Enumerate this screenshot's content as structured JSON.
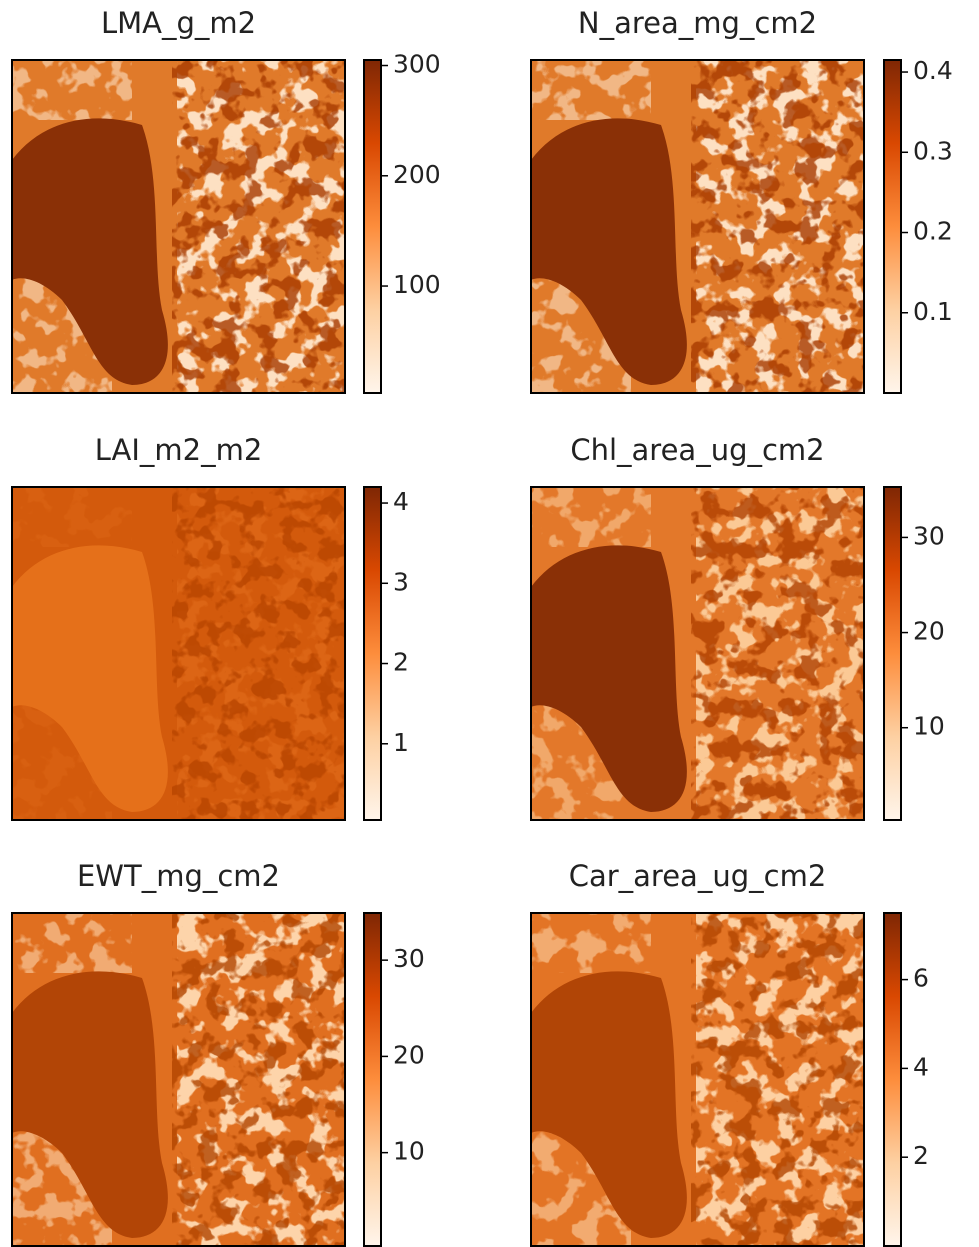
{
  "chart_data": [
    {
      "type": "heatmap",
      "title": "LMA_g_m2",
      "ylim": [
        3,
        305
      ],
      "yticks": [
        100,
        200,
        300
      ],
      "colormap": [
        "#fff5eb",
        "#fdd0a2",
        "#fd8d3c",
        "#d94801",
        "#7f2704"
      ]
    },
    {
      "type": "heatmap",
      "title": "N_area_mg_cm2",
      "ylim": [
        0,
        0.415
      ],
      "yticks": [
        0.1,
        0.2,
        0.3,
        0.4
      ],
      "colormap": [
        "#fff5eb",
        "#fdd0a2",
        "#fd8d3c",
        "#d94801",
        "#7f2704"
      ]
    },
    {
      "type": "heatmap",
      "title": "LAI_m2_m2",
      "ylim": [
        0.05,
        4.2
      ],
      "yticks": [
        1,
        2,
        3,
        4
      ],
      "colormap": [
        "#fff5eb",
        "#fdd0a2",
        "#fd8d3c",
        "#d94801",
        "#7f2704"
      ]
    },
    {
      "type": "heatmap",
      "title": "Chl_area_ug_cm2",
      "ylim": [
        0.3,
        35.3
      ],
      "yticks": [
        10,
        20,
        30
      ],
      "colormap": [
        "#fff5eb",
        "#fdd0a2",
        "#fd8d3c",
        "#d94801",
        "#7f2704"
      ]
    },
    {
      "type": "heatmap",
      "title": "EWT_mg_cm2",
      "ylim": [
        0.3,
        34.9
      ],
      "yticks": [
        10,
        20,
        30
      ],
      "colormap": [
        "#fff5eb",
        "#fdd0a2",
        "#fd8d3c",
        "#d94801",
        "#7f2704"
      ]
    },
    {
      "type": "heatmap",
      "title": "Car_area_ug_cm2",
      "ylim": [
        0,
        7.5
      ],
      "yticks": [
        2,
        4,
        6
      ],
      "colormap": [
        "#fff5eb",
        "#fdd0a2",
        "#fd8d3c",
        "#d94801",
        "#7f2704"
      ]
    }
  ]
}
